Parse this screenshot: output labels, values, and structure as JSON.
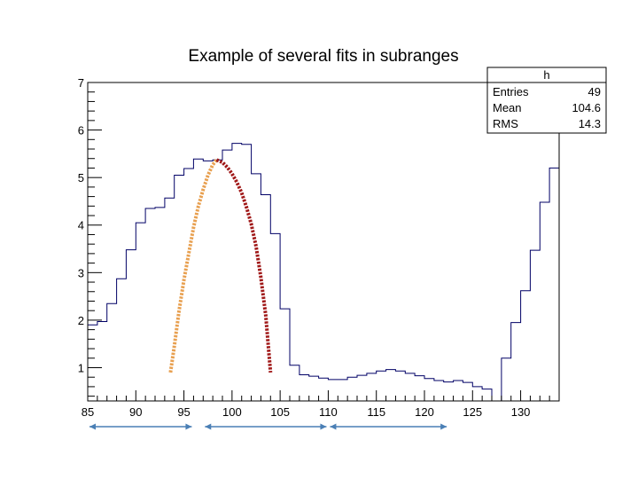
{
  "chart_data": {
    "type": "histogram",
    "title": "Example of several fits in subranges",
    "xlim": [
      85,
      134
    ],
    "ylim": [
      0.3,
      7
    ],
    "x_ticks": [
      85,
      90,
      95,
      100,
      105,
      110,
      115,
      120,
      125,
      130
    ],
    "y_ticks": [
      1,
      2,
      3,
      4,
      5,
      6,
      7
    ],
    "bin_width": 1,
    "bin_edges": [
      85,
      86,
      87,
      88,
      89,
      90,
      91,
      92,
      93,
      94,
      95,
      96,
      97,
      98,
      99,
      100,
      101,
      102,
      103,
      104,
      105,
      106,
      107,
      108,
      109,
      110,
      111,
      112,
      113,
      114,
      115,
      116,
      117,
      118,
      119,
      120,
      121,
      122,
      123,
      124,
      125,
      126,
      127,
      128,
      129,
      130,
      131,
      132,
      133,
      134
    ],
    "bin_values": [
      1.9,
      1.97,
      2.35,
      2.87,
      3.48,
      4.05,
      4.35,
      4.37,
      4.57,
      5.05,
      5.19,
      5.39,
      5.35,
      5.37,
      5.58,
      5.72,
      5.7,
      5.08,
      4.64,
      3.82,
      2.24,
      1.05,
      0.85,
      0.82,
      0.78,
      0.75,
      0.75,
      0.8,
      0.84,
      0.88,
      0.93,
      0.96,
      0.93,
      0.88,
      0.83,
      0.77,
      0.73,
      0.7,
      0.73,
      0.69,
      0.6,
      0.55,
      0.3,
      1.2,
      1.95,
      2.62,
      3.47,
      4.48,
      5.2
    ],
    "series": [
      {
        "color": "#e8a050",
        "style": "dotted",
        "x": [
          93.6,
          94.0,
          94.5,
          95.0,
          95.5,
          96.0,
          96.5,
          97.0,
          97.5,
          98.0,
          98.4
        ],
        "y": [
          0.9,
          1.45,
          2.2,
          2.85,
          3.4,
          3.95,
          4.4,
          4.75,
          5.05,
          5.27,
          5.37
        ]
      },
      {
        "color": "#a01818",
        "style": "dotted",
        "x": [
          98.4,
          99.0,
          99.5,
          100.0,
          100.5,
          101.0,
          101.5,
          102.0,
          102.5,
          103.0,
          103.5,
          104.0
        ],
        "y": [
          5.37,
          5.32,
          5.22,
          5.08,
          4.9,
          4.68,
          4.38,
          4.02,
          3.55,
          2.9,
          2.1,
          0.9
        ]
      }
    ],
    "range_arrows": [
      {
        "from": 85,
        "to": 96
      },
      {
        "from": 97,
        "to": 110
      },
      {
        "from": 110,
        "to": 122.5
      }
    ],
    "stats_box": {
      "name": "h",
      "entries_label": "Entries",
      "entries_value": "49",
      "mean_label": "Mean",
      "mean_value": "104.6",
      "rms_label": "RMS",
      "rms_value": "14.3"
    }
  }
}
